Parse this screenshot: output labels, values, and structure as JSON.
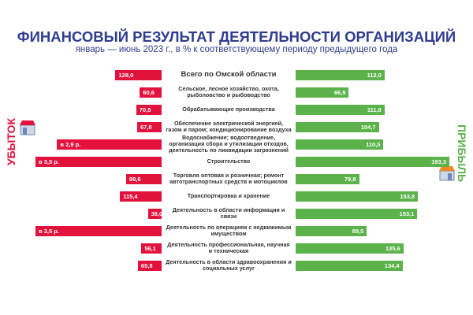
{
  "chart_data": {
    "type": "butterfly",
    "title": "ФИНАНСОВЫЙ РЕЗУЛЬТАТ ДЕЯТЕЛЬНОСТИ ОРГАНИЗАЦИЙ",
    "subtitle": "январь — июнь 2023 г., в % к соответствующему периоду предыдущего года",
    "categories": [
      "Всего по Омской области",
      "Сельское, лесное хозяйство, охота, рыболовство и рыбоводство",
      "Обрабатывающие производства",
      "Обеспечение электрической энергией, газом и паром; кондиционирование воздуха",
      "Водоснабжение; водоотведение, организация сбора и утилизации отходов, деятельность по ликвидации загрязнений",
      "Строительство",
      "Торговля оптовая и розничная; ремонт автотранспортных средств и мотоциклов",
      "Транспортировка и хранение",
      "Деятельность в области информации и связи",
      "Деятельность по операциям с недвижимым имуществом",
      "Деятельность профессиональная, научная и техническая",
      "Деятельность в области здравоохранения и социальных услуг"
    ],
    "series": [
      {
        "name": "УБЫТОК",
        "color": "#e2123c",
        "values": [
          128.0,
          60.6,
          70.5,
          67.8,
          290,
          350,
          98.6,
          115.4,
          38.0,
          350,
          56.1,
          65.8
        ],
        "value_labels": [
          "128,0",
          "60,6",
          "70,5",
          "67,8",
          "в 2,9 р.",
          "в 3,5 р.",
          "98,6",
          "115,4",
          "38,0",
          "в 3,5 р.",
          "56,1",
          "65,8"
        ]
      },
      {
        "name": "ПРИБЫЛЬ",
        "color": "#5bb24a",
        "values": [
          112.0,
          66.9,
          111.8,
          104.7,
          110.5,
          193.3,
          79.8,
          153.8,
          153.1,
          89.5,
          135.6,
          134.4
        ],
        "value_labels": [
          "112,0",
          "66,9",
          "111,8",
          "104,7",
          "110,5",
          "193,3",
          "79,8",
          "153,8",
          "153,1",
          "89,5",
          "135,6",
          "134,4"
        ]
      }
    ]
  }
}
